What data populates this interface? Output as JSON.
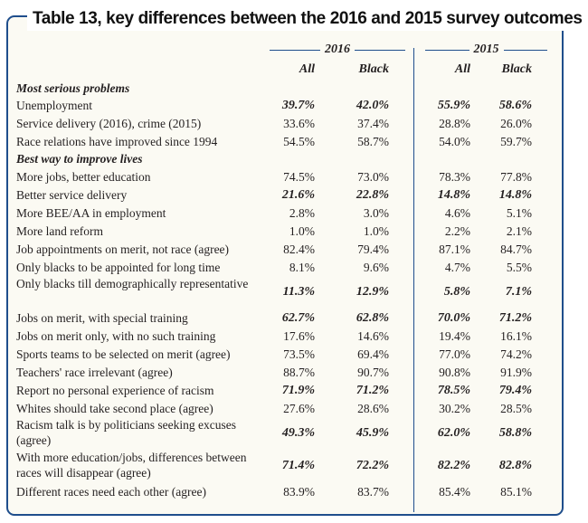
{
  "title": "Table 13, key differences between the 2016 and 2015 survey outcomes",
  "years": [
    "2016",
    "2015"
  ],
  "columns": [
    "All",
    "Black",
    "All",
    "Black"
  ],
  "sections": [
    "Most serious problems",
    "Best way to improve lives"
  ],
  "rows": [
    {
      "label": "Unemployment",
      "values": [
        "39.7%",
        "42.0%",
        "55.9%",
        "58.6%"
      ],
      "bold": true
    },
    {
      "label": "Service delivery (2016), crime (2015)",
      "values": [
        "33.6%",
        "37.4%",
        "28.8%",
        "26.0%"
      ],
      "bold": false
    },
    {
      "label": "Race relations have improved since 1994",
      "values": [
        "54.5%",
        "58.7%",
        "54.0%",
        "59.7%"
      ],
      "bold": false
    },
    {
      "label": "More jobs, better education",
      "values": [
        "74.5%",
        "73.0%",
        "78.3%",
        "77.8%"
      ],
      "bold": false
    },
    {
      "label": "Better service delivery",
      "values": [
        "21.6%",
        "22.8%",
        "14.8%",
        "14.8%"
      ],
      "bold": true
    },
    {
      "label": "More BEE/AA in employment",
      "values": [
        "2.8%",
        "3.0%",
        "4.6%",
        "5.1%"
      ],
      "bold": false
    },
    {
      "label": "More land reform",
      "values": [
        "1.0%",
        "1.0%",
        "2.2%",
        "2.1%"
      ],
      "bold": false
    },
    {
      "label": "Job appointments on merit, not race (agree)",
      "values": [
        "82.4%",
        "79.4%",
        "87.1%",
        "84.7%"
      ],
      "bold": false
    },
    {
      "label": "Only blacks to be appointed for long time",
      "values": [
        "8.1%",
        "9.6%",
        "4.7%",
        "5.5%"
      ],
      "bold": false
    },
    {
      "label": "Only blacks till demographically representative",
      "values": [
        "11.3%",
        "12.9%",
        "5.8%",
        "7.1%"
      ],
      "bold": true
    },
    {
      "label": "Jobs on merit, with special training",
      "values": [
        "62.7%",
        "62.8%",
        "70.0%",
        "71.2%"
      ],
      "bold": true
    },
    {
      "label": "Jobs on merit only, with no such training",
      "values": [
        "17.6%",
        "14.6%",
        "19.4%",
        "16.1%"
      ],
      "bold": false
    },
    {
      "label": "Sports teams to be selected on merit (agree)",
      "values": [
        "73.5%",
        "69.4%",
        "77.0%",
        "74.2%"
      ],
      "bold": false
    },
    {
      "label": "Teachers' race irrelevant (agree)",
      "values": [
        "88.7%",
        "90.7%",
        "90.8%",
        "91.9%"
      ],
      "bold": false
    },
    {
      "label": "Report no personal experience of racism",
      "values": [
        "71.9%",
        "71.2%",
        "78.5%",
        "79.4%"
      ],
      "bold": true
    },
    {
      "label": "Whites should take second place (agree)",
      "values": [
        "27.6%",
        "28.6%",
        "30.2%",
        "28.5%"
      ],
      "bold": false
    },
    {
      "label": "Racism talk is by politicians seeking excuses (agree)",
      "values": [
        "49.3%",
        "45.9%",
        "62.0%",
        "58.8%"
      ],
      "bold": true
    },
    {
      "label": "With more education/jobs, differences between races will disappear (agree)",
      "values": [
        "71.4%",
        "72.2%",
        "82.2%",
        "82.8%"
      ],
      "bold": true
    },
    {
      "label": "Different races need each other (agree)",
      "values": [
        "83.9%",
        "83.7%",
        "85.4%",
        "85.1%"
      ],
      "bold": false
    }
  ],
  "colors": {
    "frame": "#1f4e8c",
    "background": "#fbfaf3",
    "text": "#231f20"
  }
}
